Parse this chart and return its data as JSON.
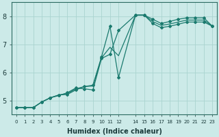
{
  "xlabel": "Humidex (Indice chaleur)",
  "ylabel": "",
  "background_color": "#cceae8",
  "grid_color": "#aad4d0",
  "line_color": "#1a7a6e",
  "xlim": [
    -0.5,
    23.5
  ],
  "ylim": [
    4.5,
    8.5
  ],
  "yticks": [
    5,
    6,
    7,
    8
  ],
  "xtick_positions": [
    0,
    1,
    2,
    3,
    4,
    5,
    6,
    7,
    8,
    9,
    10,
    11,
    12,
    14,
    15,
    16,
    17,
    18,
    19,
    20,
    21,
    22,
    23
  ],
  "xtick_labels": [
    "0",
    "1",
    "2",
    "3",
    "4",
    "5",
    "6",
    "7",
    "8",
    "9",
    "10",
    "11",
    "12",
    "14",
    "15",
    "16",
    "17",
    "18",
    "19",
    "20",
    "21",
    "22",
    "23"
  ],
  "curve1_x": [
    0,
    1,
    2,
    3,
    4,
    5,
    6,
    7,
    8,
    9,
    10,
    11,
    12,
    14,
    15,
    16,
    17,
    18,
    19,
    20,
    21,
    22,
    23
  ],
  "curve1_y": [
    4.75,
    4.75,
    4.75,
    4.95,
    5.1,
    5.18,
    5.28,
    5.45,
    5.42,
    5.38,
    6.5,
    6.65,
    7.5,
    8.05,
    8.05,
    7.9,
    7.75,
    7.82,
    7.9,
    7.95,
    7.95,
    7.95,
    7.65
  ],
  "curve2_x": [
    0,
    1,
    2,
    3,
    4,
    5,
    6,
    7,
    8,
    9,
    10,
    11,
    12,
    14,
    15,
    16,
    17,
    18,
    19,
    20,
    21,
    22,
    23
  ],
  "curve2_y": [
    4.75,
    4.75,
    4.75,
    4.95,
    5.1,
    5.2,
    5.22,
    5.38,
    5.5,
    5.55,
    6.55,
    7.65,
    5.82,
    8.05,
    8.05,
    7.75,
    7.6,
    7.65,
    7.72,
    7.8,
    7.8,
    7.8,
    7.65
  ],
  "curve3_x": [
    0,
    1,
    2,
    3,
    4,
    5,
    6,
    7,
    8,
    9,
    10,
    11,
    12,
    14,
    15,
    16,
    17,
    18,
    19,
    20,
    21,
    22,
    23
  ],
  "curve3_y": [
    4.75,
    4.75,
    4.75,
    4.95,
    5.1,
    5.2,
    5.25,
    5.42,
    5.5,
    5.52,
    6.52,
    6.9,
    6.6,
    8.05,
    8.05,
    7.82,
    7.68,
    7.73,
    7.8,
    7.87,
    7.87,
    7.87,
    7.65
  ]
}
